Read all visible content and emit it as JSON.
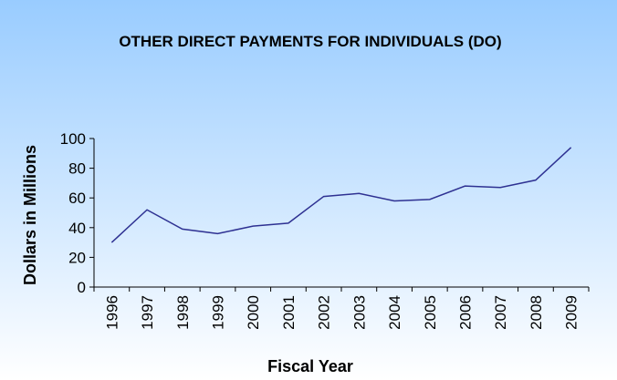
{
  "chart_data": {
    "type": "line",
    "title": "OTHER DIRECT PAYMENTS FOR INDIVIDUALS (DO)",
    "x_label": "Fiscal Year",
    "y_label": "Dollars in Millions",
    "categories": [
      "1996",
      "1997",
      "1998",
      "1999",
      "2000",
      "2001",
      "2002",
      "2003",
      "2004",
      "2005",
      "2006",
      "2007",
      "2008",
      "2009"
    ],
    "values": [
      30,
      52,
      39,
      36,
      41,
      43,
      61,
      63,
      58,
      59,
      68,
      67,
      72,
      94
    ],
    "color": "#2e3192",
    "ylim": [
      0,
      100
    ],
    "yticks": [
      0,
      20,
      40,
      60,
      80,
      100
    ],
    "grid": false
  }
}
